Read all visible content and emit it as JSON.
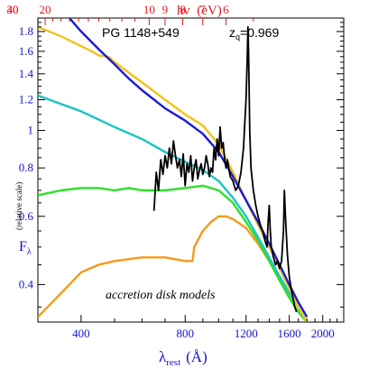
{
  "chart_data": {
    "type": "line",
    "title": "PG 1148+549",
    "redshift_label": "z",
    "redshift_sub": "q",
    "redshift_value": "=0.969",
    "annotation": "accretion disk models",
    "xlabel_main": "λ",
    "xlabel_sub": "rest",
    "xlabel_unit": "(Å)",
    "ylabel_main": "F",
    "ylabel_sub": "λ",
    "ylabel_note": "(relative scale)",
    "toplabel_main": "hν",
    "toplabel_unit": "(eV)",
    "x_scale": "log",
    "y_scale": "log",
    "xlim": [
      300,
      2300
    ],
    "ylim": [
      0.32,
      1.95
    ],
    "x_ticks": [
      400,
      800,
      1200,
      1600,
      2000
    ],
    "x_tick_labels": [
      "400",
      "800",
      "1200",
      "1600",
      "2000"
    ],
    "y_ticks": [
      0.4,
      0.6,
      0.8,
      1.0,
      1.2,
      1.4,
      1.6,
      1.8
    ],
    "y_tick_labels": [
      "0.4",
      "0.6",
      "0.8",
      "1",
      "1.2",
      "1.4",
      "1.6",
      "1.8"
    ],
    "top_ticks_eV": [
      40,
      30,
      20,
      10,
      9,
      8,
      7,
      6
    ],
    "top_tick_labels": [
      "40",
      "30",
      "20",
      "10",
      "9",
      "8",
      "7",
      "6"
    ],
    "colors": {
      "observed": "#000000",
      "blue": "#1a1ad8",
      "yellow": "#f2c21a",
      "cyan": "#19c4c4",
      "green": "#2be02b",
      "orange": "#f59a1c",
      "axis_labels": "#1515c8",
      "top_axis": "#e0191d"
    },
    "series": [
      {
        "color_key": "blue",
        "x": [
          370,
          400,
          450,
          500,
          550,
          600,
          700,
          800,
          900,
          1000,
          1100,
          1200,
          1300,
          1400,
          1500,
          1600,
          1700,
          1800
        ],
        "y": [
          1.95,
          1.8,
          1.62,
          1.48,
          1.36,
          1.27,
          1.14,
          1.06,
          0.98,
          0.88,
          0.76,
          0.66,
          0.58,
          0.51,
          0.45,
          0.4,
          0.36,
          0.33
        ]
      },
      {
        "color_key": "yellow",
        "x": [
          300,
          350,
          400,
          430,
          450,
          480,
          500,
          600,
          700,
          800,
          900,
          1000,
          1100,
          1200,
          1300,
          1400,
          1500,
          1600,
          1700,
          1800
        ],
        "y": [
          1.85,
          1.75,
          1.65,
          1.6,
          1.56,
          1.55,
          1.5,
          1.33,
          1.2,
          1.1,
          1.03,
          0.92,
          0.78,
          0.66,
          0.57,
          0.5,
          0.44,
          0.39,
          0.35,
          0.32
        ]
      },
      {
        "color_key": "cyan",
        "x": [
          300,
          350,
          400,
          500,
          600,
          700,
          800,
          900,
          1000,
          1100,
          1200,
          1300,
          1400,
          1500,
          1600,
          1700,
          1800
        ],
        "y": [
          1.23,
          1.17,
          1.12,
          1.02,
          0.95,
          0.88,
          0.83,
          0.79,
          0.74,
          0.67,
          0.6,
          0.53,
          0.47,
          0.42,
          0.38,
          0.35,
          0.32
        ]
      },
      {
        "color_key": "green",
        "x": [
          300,
          350,
          400,
          450,
          500,
          550,
          600,
          700,
          800,
          900,
          1000,
          1100,
          1200,
          1300,
          1400,
          1500,
          1600,
          1700,
          1800
        ],
        "y": [
          0.68,
          0.7,
          0.71,
          0.71,
          0.7,
          0.71,
          0.7,
          0.7,
          0.71,
          0.72,
          0.7,
          0.65,
          0.58,
          0.52,
          0.46,
          0.41,
          0.37,
          0.34,
          0.32
        ]
      },
      {
        "color_key": "orange",
        "x": [
          300,
          320,
          350,
          380,
          400,
          450,
          500,
          600,
          700,
          800,
          840,
          850,
          900,
          950,
          1000,
          1050,
          1100,
          1200,
          1300,
          1400,
          1500,
          1600,
          1700,
          1800
        ],
        "y": [
          0.33,
          0.35,
          0.38,
          0.41,
          0.43,
          0.45,
          0.46,
          0.47,
          0.47,
          0.46,
          0.46,
          0.5,
          0.55,
          0.58,
          0.6,
          0.6,
          0.59,
          0.56,
          0.51,
          0.46,
          0.41,
          0.37,
          0.34,
          0.32
        ]
      },
      {
        "color_key": "observed",
        "x": [
          650,
          660,
          670,
          680,
          690,
          700,
          710,
          720,
          730,
          740,
          750,
          760,
          770,
          780,
          790,
          800,
          810,
          820,
          830,
          840,
          850,
          860,
          870,
          880,
          890,
          900,
          910,
          920,
          930,
          940,
          950,
          960,
          970,
          980,
          990,
          1000,
          1010,
          1020,
          1030,
          1040,
          1050,
          1060,
          1080,
          1100,
          1120,
          1140,
          1160,
          1180,
          1200,
          1210,
          1215,
          1220,
          1230,
          1240,
          1260,
          1280,
          1300,
          1320,
          1340,
          1360,
          1380,
          1390,
          1400,
          1410,
          1420,
          1440,
          1460,
          1480,
          1500,
          1520,
          1540,
          1549,
          1560,
          1580,
          1600,
          1620,
          1640,
          1660,
          1680
        ],
        "y": [
          0.62,
          0.78,
          0.7,
          0.84,
          0.77,
          0.86,
          0.8,
          0.9,
          0.82,
          0.94,
          0.86,
          0.8,
          0.84,
          0.76,
          0.87,
          0.72,
          0.82,
          0.78,
          0.86,
          0.74,
          0.8,
          0.84,
          0.75,
          0.79,
          0.82,
          0.77,
          0.8,
          0.86,
          0.82,
          0.76,
          0.8,
          0.78,
          0.9,
          0.84,
          0.95,
          0.86,
          1.02,
          0.9,
          0.93,
          0.85,
          0.8,
          0.84,
          0.76,
          0.74,
          0.7,
          0.72,
          0.78,
          0.9,
          1.2,
          1.55,
          1.85,
          1.6,
          1.0,
          0.8,
          0.7,
          0.64,
          0.6,
          0.57,
          0.55,
          0.52,
          0.5,
          0.58,
          0.64,
          0.55,
          0.5,
          0.47,
          0.45,
          0.46,
          0.44,
          0.46,
          0.55,
          0.7,
          0.6,
          0.48,
          0.42,
          0.39,
          0.37,
          0.35,
          0.34
        ]
      }
    ]
  }
}
